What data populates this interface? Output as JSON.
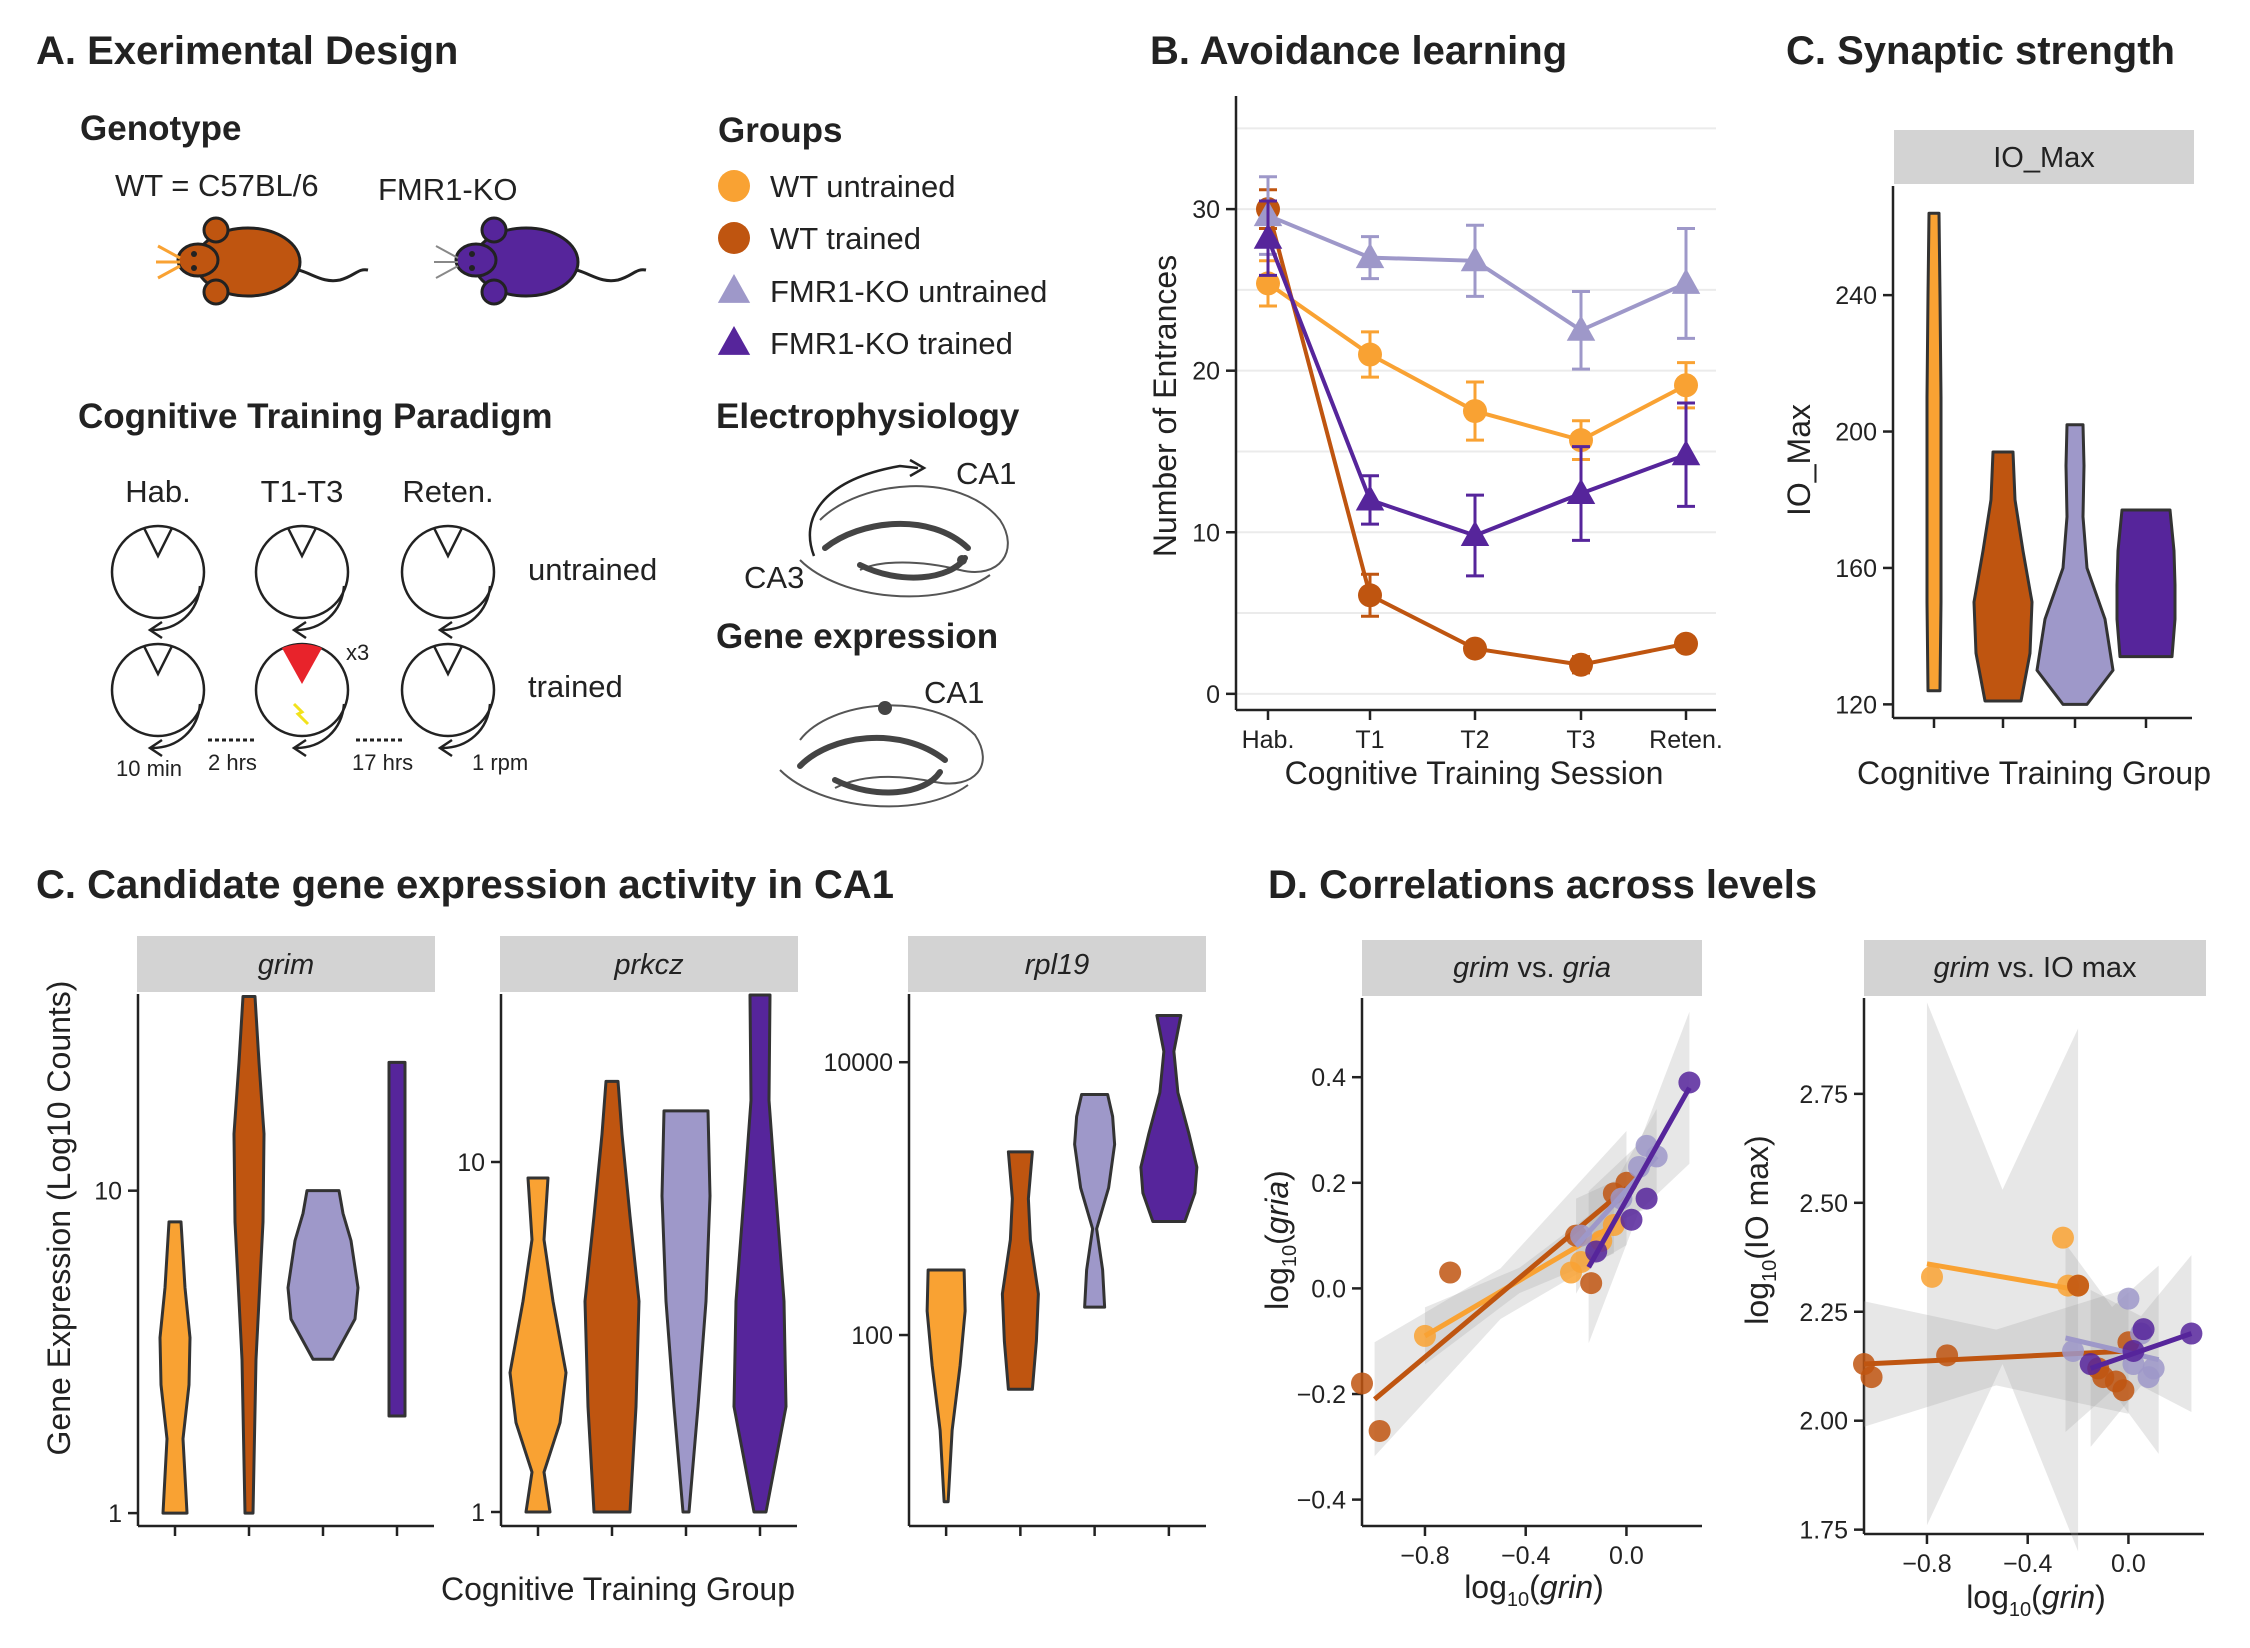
{
  "colors": {
    "wt_untrained": "#f9a233",
    "wt_trained": "#bf5510",
    "ko_untrained": "#9e98c9",
    "ko_trained": "#56259b",
    "shock": "#e8232b",
    "bolt": "#f2e21c"
  },
  "panelA": {
    "title": "A. Exerimental Design",
    "genotype_heading": "Genotype",
    "wt_label": "WT = C57BL/6",
    "ko_label": "FMR1-KO",
    "groups_heading": "Groups",
    "groups": [
      "WT untrained",
      "WT trained",
      "FMR1-KO untrained",
      "FMR1-KO trained"
    ],
    "paradigm_heading": "Cognitive Training Paradigm",
    "phases": [
      "Hab.",
      "T1-T3",
      "Reten."
    ],
    "row_labels": [
      "untrained",
      "trained"
    ],
    "repeat_label": "x3",
    "timing": [
      "10 min",
      "2 hrs",
      "17 hrs",
      "1 rpm"
    ],
    "ephys_heading": "Electrophysiology",
    "ca1_label": "CA1",
    "ca3_label": "CA3",
    "gene_heading": "Gene expression",
    "gene_ca1_label": "CA1",
    "icons": [
      "mouse-icon",
      "arena-icon",
      "hippocampus-icon",
      "shock-zone-icon",
      "lightning-icon",
      "rotation-arrow-icon"
    ]
  },
  "chart_data": [
    {
      "id": "B",
      "type": "line",
      "title": "B. Avoidance learning",
      "xlabel": "Cognitive Training Session",
      "ylabel": "Number of Entrances",
      "categories": [
        "Hab.",
        "T1",
        "T2",
        "T3",
        "Reten."
      ],
      "ylim": [
        -1,
        37
      ],
      "yticks": [
        0,
        10,
        20,
        30
      ],
      "grid": true,
      "series": [
        {
          "name": "WT untrained",
          "marker": "circle",
          "values": [
            25.4,
            21.0,
            17.5,
            15.7,
            19.1
          ],
          "err": [
            1.4,
            1.4,
            1.8,
            1.2,
            1.4
          ]
        },
        {
          "name": "WT trained",
          "marker": "circle",
          "values": [
            30.0,
            6.1,
            2.8,
            1.8,
            3.1
          ],
          "err": [
            1.2,
            1.3,
            0.4,
            0.5,
            0.4
          ]
        },
        {
          "name": "FMR1-KO untrained",
          "marker": "triangle",
          "values": [
            29.6,
            27.0,
            26.8,
            22.5,
            25.4
          ],
          "err": [
            2.4,
            1.3,
            2.2,
            2.4,
            3.4
          ]
        },
        {
          "name": "FMR1-KO trained",
          "marker": "triangle",
          "values": [
            28.2,
            12.0,
            9.8,
            12.4,
            14.8
          ],
          "err": [
            2.3,
            1.5,
            2.5,
            2.9,
            3.2
          ]
        }
      ]
    },
    {
      "id": "C_syn",
      "type": "violin",
      "title": "C. Synaptic strength",
      "strip": "IO_Max",
      "xlabel": "Cognitive Training Group",
      "ylabel": "IO_Max",
      "ylim": [
        116,
        272
      ],
      "yticks": [
        120,
        160,
        200,
        240
      ],
      "series": [
        {
          "name": "WT untrained",
          "min": 124,
          "max": 264,
          "profile": [
            [
              124,
              6
            ],
            [
              150,
              7
            ],
            [
              180,
              7
            ],
            [
              210,
              7
            ],
            [
              240,
              6
            ],
            [
              264,
              5
            ]
          ]
        },
        {
          "name": "WT trained",
          "min": 121,
          "max": 194,
          "profile": [
            [
              121,
              18
            ],
            [
              135,
              27
            ],
            [
              150,
              29
            ],
            [
              165,
              20
            ],
            [
              180,
              12
            ],
            [
              194,
              10
            ]
          ]
        },
        {
          "name": "FMR1-KO untrained",
          "min": 120,
          "max": 202,
          "profile": [
            [
              120,
              12
            ],
            [
              130,
              38
            ],
            [
              145,
              30
            ],
            [
              160,
              12
            ],
            [
              175,
              8
            ],
            [
              190,
              9
            ],
            [
              202,
              8
            ]
          ]
        },
        {
          "name": "FMR1-KO trained",
          "min": 134,
          "max": 177,
          "profile": [
            [
              134,
              26
            ],
            [
              145,
              29
            ],
            [
              155,
              29
            ],
            [
              165,
              28
            ],
            [
              177,
              24
            ]
          ]
        }
      ]
    },
    {
      "id": "C_gene_grim",
      "type": "violin",
      "title": "C. Candidate gene expression activity in CA1",
      "strip": "grim",
      "xlabel": "Cognitive Training Group",
      "ylabel": "Gene Expression (Log10 Counts)",
      "scale": "log10",
      "ylim_log10": [
        -0.04,
        1.61
      ],
      "yticks": [
        1,
        10
      ],
      "series": [
        {
          "name": "WT untrained",
          "min": 1,
          "max": 8,
          "profile": [
            [
              1,
              12
            ],
            [
              1.7,
              8
            ],
            [
              2.5,
              14
            ],
            [
              3.5,
              15
            ],
            [
              5,
              10
            ],
            [
              8,
              6
            ]
          ]
        },
        {
          "name": "WT trained",
          "min": 1,
          "max": 40,
          "profile": [
            [
              1,
              4
            ],
            [
              3,
              7
            ],
            [
              8,
              14
            ],
            [
              15,
              15
            ],
            [
              25,
              10
            ],
            [
              40,
              6
            ]
          ]
        },
        {
          "name": "FMR1-KO untrained",
          "min": 3,
          "max": 10,
          "profile": [
            [
              3,
              10
            ],
            [
              4,
              32
            ],
            [
              5,
              35
            ],
            [
              7,
              28
            ],
            [
              8.5,
              20
            ],
            [
              10,
              16
            ]
          ]
        },
        {
          "name": "FMR1-KO trained",
          "min": 2,
          "max": 25,
          "profile": [
            [
              2,
              8
            ],
            [
              4,
              8
            ],
            [
              8,
              8
            ],
            [
              15,
              8
            ],
            [
              25,
              8
            ]
          ]
        }
      ]
    },
    {
      "id": "C_gene_prkcz",
      "type": "violin",
      "strip": "prkcz",
      "scale": "log10",
      "ylim_log10": [
        -0.04,
        1.48
      ],
      "yticks": [
        1,
        10
      ],
      "series": [
        {
          "name": "WT untrained",
          "min": 1,
          "max": 9,
          "profile": [
            [
              1,
              12
            ],
            [
              1.3,
              6
            ],
            [
              1.8,
              22
            ],
            [
              2.5,
              28
            ],
            [
              4,
              15
            ],
            [
              6,
              6
            ],
            [
              9,
              10
            ]
          ]
        },
        {
          "name": "WT trained",
          "min": 1,
          "max": 17,
          "profile": [
            [
              1,
              18
            ],
            [
              2,
              24
            ],
            [
              4,
              27
            ],
            [
              7,
              18
            ],
            [
              12,
              10
            ],
            [
              17,
              6
            ]
          ]
        },
        {
          "name": "FMR1-KO untrained",
          "min": 1,
          "max": 14,
          "profile": [
            [
              1,
              3
            ],
            [
              2,
              12
            ],
            [
              4,
              20
            ],
            [
              8,
              24
            ],
            [
              14,
              22
            ]
          ]
        },
        {
          "name": "FMR1-KO trained",
          "min": 1,
          "max": 30,
          "profile": [
            [
              1,
              6
            ],
            [
              2,
              26
            ],
            [
              4,
              24
            ],
            [
              8,
              16
            ],
            [
              15,
              9
            ],
            [
              30,
              10
            ]
          ]
        }
      ]
    },
    {
      "id": "C_gene_rpl19",
      "type": "violin",
      "strip": "rpl19",
      "scale": "log10",
      "ylim_log10": [
        0.6,
        4.5
      ],
      "yticks": [
        100,
        10000
      ],
      "series": [
        {
          "name": "WT untrained",
          "min": 6,
          "max": 300,
          "profile": [
            [
              6,
              2
            ],
            [
              20,
              6
            ],
            [
              60,
              14
            ],
            [
              150,
              19
            ],
            [
              300,
              18
            ]
          ]
        },
        {
          "name": "WT trained",
          "min": 40,
          "max": 2200,
          "profile": [
            [
              40,
              12
            ],
            [
              90,
              16
            ],
            [
              200,
              18
            ],
            [
              500,
              10
            ],
            [
              1000,
              8
            ],
            [
              2200,
              12
            ]
          ]
        },
        {
          "name": "FMR1-KO untrained",
          "min": 160,
          "max": 5800,
          "profile": [
            [
              160,
              10
            ],
            [
              300,
              8
            ],
            [
              600,
              2
            ],
            [
              1200,
              14
            ],
            [
              2500,
              20
            ],
            [
              4000,
              18
            ],
            [
              5800,
              13
            ]
          ]
        },
        {
          "name": "FMR1-KO trained",
          "min": 680,
          "max": 22000,
          "profile": [
            [
              680,
              16
            ],
            [
              1100,
              26
            ],
            [
              1700,
              28
            ],
            [
              3000,
              20
            ],
            [
              6000,
              9
            ],
            [
              12000,
              5
            ],
            [
              22000,
              12
            ]
          ]
        }
      ]
    },
    {
      "id": "D_gria",
      "type": "scatter",
      "title": "D. Correlations across levels",
      "strip": "grim vs. gria",
      "xlim": [
        -1.05,
        0.3
      ],
      "ylim": [
        -0.45,
        0.55
      ],
      "xticks": [
        -0.8,
        -0.4,
        0.0
      ],
      "yticks": [
        -0.4,
        -0.2,
        0.0,
        0.2,
        0.4
      ],
      "xlabel": "log10(grin)",
      "ylabel": "log10(gria)",
      "series": [
        {
          "name": "WT untrained",
          "x": [
            -0.8,
            -0.22,
            -0.18,
            -0.1,
            -0.05
          ],
          "y": [
            -0.09,
            0.03,
            0.05,
            0.09,
            0.12
          ],
          "fit": [
            [
              -0.8,
              -0.09
            ],
            [
              -0.05,
              0.12
            ]
          ],
          "band": 0.03
        },
        {
          "name": "WT trained",
          "x": [
            -1.05,
            -0.98,
            -0.7,
            -0.2,
            -0.14,
            -0.05,
            0.0
          ],
          "y": [
            -0.18,
            -0.27,
            0.03,
            0.1,
            0.01,
            0.18,
            0.2
          ],
          "fit": [
            [
              -1.0,
              -0.21
            ],
            [
              0.0,
              0.19
            ]
          ],
          "band": 0.06
        },
        {
          "name": "FMR1-KO untrained",
          "x": [
            -0.18,
            -0.02,
            0.05,
            0.08,
            0.12
          ],
          "y": [
            0.1,
            0.17,
            0.23,
            0.27,
            0.25
          ],
          "fit": [
            [
              -0.2,
              0.08
            ],
            [
              0.12,
              0.25
            ]
          ],
          "band": 0.05
        },
        {
          "name": "FMR1-KO trained",
          "x": [
            -0.12,
            0.02,
            0.08,
            0.25
          ],
          "y": [
            0.07,
            0.13,
            0.17,
            0.39
          ],
          "fit": [
            [
              -0.15,
              0.04
            ],
            [
              0.25,
              0.38
            ]
          ],
          "band": 0.08
        }
      ]
    },
    {
      "id": "D_io",
      "type": "scatter",
      "strip": "grim vs. IO max",
      "xlim": [
        -1.05,
        0.3
      ],
      "ylim": [
        1.74,
        2.97
      ],
      "xticks": [
        -0.8,
        -0.4,
        0.0
      ],
      "yticks": [
        1.75,
        2.0,
        2.25,
        2.5,
        2.75
      ],
      "xlabel": "log10(grin)",
      "ylabel": "log10(IO max)",
      "series": [
        {
          "name": "WT untrained",
          "x": [
            -0.78,
            -0.26,
            -0.24,
            -0.2
          ],
          "y": [
            2.33,
            2.42,
            2.31,
            2.31
          ],
          "fit": [
            [
              -0.8,
              2.36
            ],
            [
              -0.2,
              2.3
            ]
          ],
          "band": 0.25
        },
        {
          "name": "WT trained",
          "x": [
            -1.05,
            -1.02,
            -0.72,
            -0.2,
            -0.12,
            -0.1,
            -0.05,
            -0.02,
            0.0
          ],
          "y": [
            2.13,
            2.1,
            2.15,
            2.31,
            2.12,
            2.1,
            2.09,
            2.07,
            2.18
          ],
          "fit": [
            [
              -1.05,
              2.13
            ],
            [
              0.0,
              2.16
            ]
          ],
          "band": 0.08
        },
        {
          "name": "FMR1-KO untrained",
          "x": [
            -0.22,
            0.0,
            0.02,
            0.05,
            0.08,
            0.1
          ],
          "y": [
            2.16,
            2.28,
            2.13,
            2.2,
            2.1,
            2.12
          ],
          "fit": [
            [
              -0.25,
              2.19
            ],
            [
              0.12,
              2.14
            ]
          ],
          "band": 0.12
        },
        {
          "name": "FMR1-KO trained",
          "x": [
            -0.15,
            0.02,
            0.06,
            0.25
          ],
          "y": [
            2.13,
            2.16,
            2.21,
            2.2
          ],
          "fit": [
            [
              -0.15,
              2.12
            ],
            [
              0.25,
              2.2
            ]
          ],
          "band": 0.1
        }
      ]
    }
  ]
}
